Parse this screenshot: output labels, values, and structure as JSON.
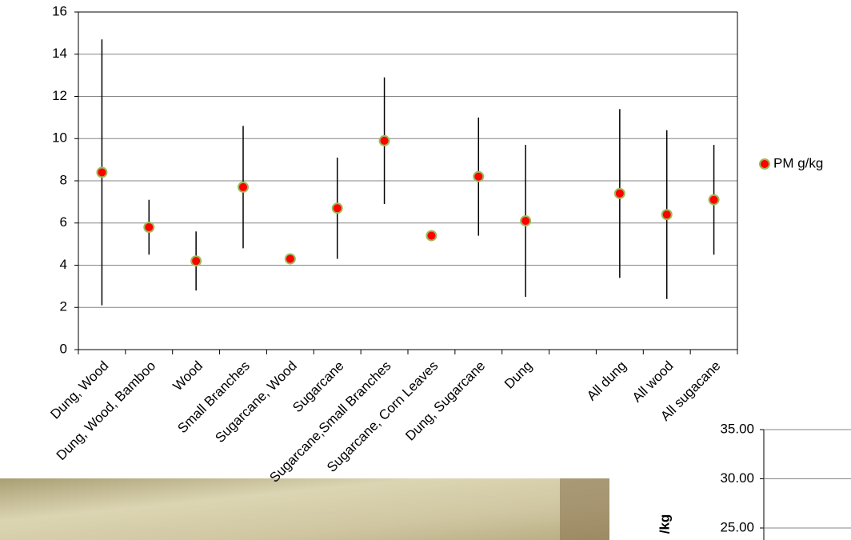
{
  "chart_data": [
    {
      "type": "errorbar",
      "categories": [
        "Dung, Wood",
        "Dung, Wood, Bamboo",
        "Wood",
        "Small Branches",
        "Sugarcane, Wood",
        "Sugarcane",
        "Sugarcane,Small Branches",
        "Sugarcane, Corn Leaves",
        "Dung, Sugarcane",
        "Dung",
        null,
        "All dung",
        "All wood",
        "All sugacane"
      ],
      "series": [
        {
          "name": "PM g/kg",
          "color": "#ff0000",
          "edgecolor": "#9bbb59",
          "values": [
            8.4,
            5.8,
            4.2,
            7.7,
            4.3,
            6.7,
            9.9,
            5.4,
            8.2,
            6.1,
            null,
            7.4,
            6.4,
            7.1
          ],
          "errors": [
            6.3,
            1.3,
            1.4,
            2.9,
            null,
            2.4,
            3.0,
            null,
            2.8,
            3.6,
            null,
            4.0,
            4.0,
            2.6
          ]
        }
      ],
      "ylim": [
        0,
        16
      ],
      "yticks": [
        0,
        2,
        4,
        6,
        8,
        10,
        12,
        14,
        16
      ],
      "grid": true,
      "legend": "right"
    },
    {
      "type": "bar",
      "ylabel": "/kg",
      "ylim": [
        25,
        35
      ],
      "yticks": [
        {
          "value": 35,
          "label": "35.00"
        },
        {
          "value": 30,
          "label": "30.00"
        },
        {
          "value": 25,
          "label": "25.00"
        }
      ],
      "grid": true
    }
  ]
}
